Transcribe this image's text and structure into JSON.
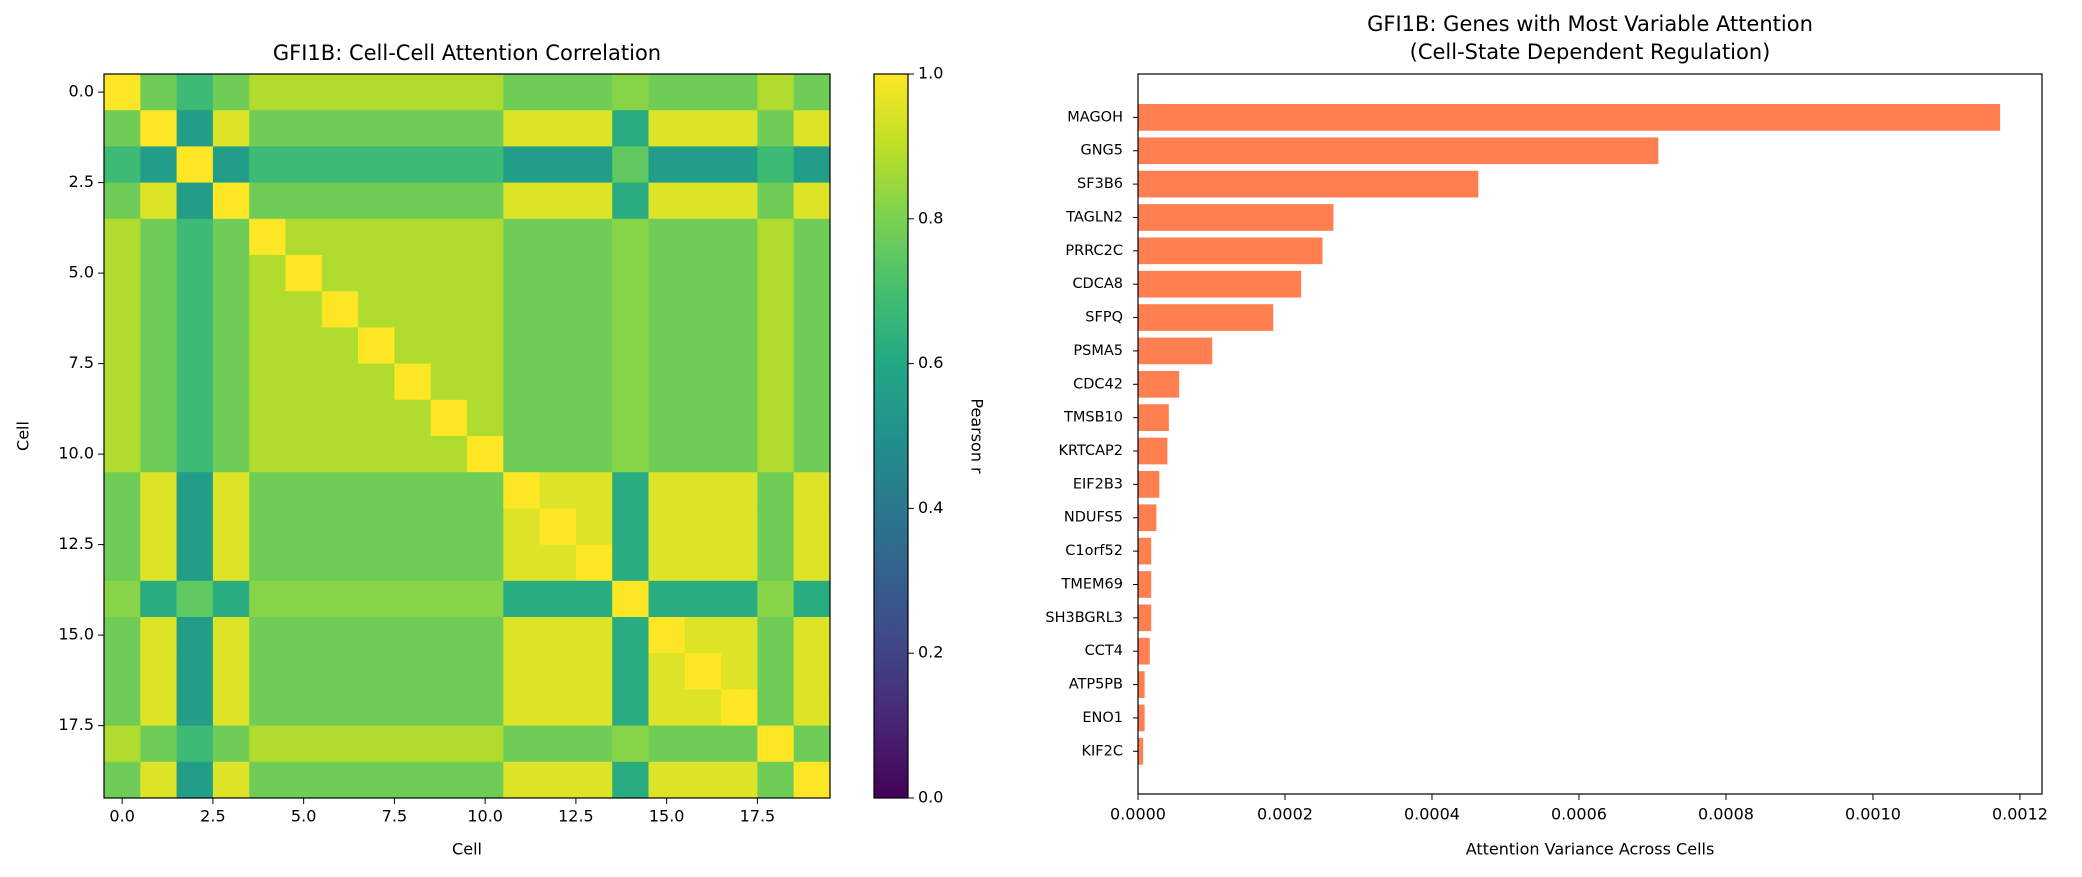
{
  "chart_data": [
    {
      "type": "heatmap",
      "title": "GFI1B: Cell-Cell Attention Correlation",
      "x_label": "Cell",
      "y_label": "Cell",
      "colormap": "viridis",
      "colorbar_label": "Pearson r",
      "clim": [
        0,
        1
      ],
      "cticks": [
        {
          "value": 0,
          "label": "0.0"
        },
        0.2,
        0.4,
        0.6,
        0.8,
        {
          "value": 1,
          "label": "1.0"
        }
      ],
      "xlim": [
        -0.5,
        19.5
      ],
      "ylim": [
        19.5,
        -0.5
      ],
      "xticks": [
        {
          "value": 0,
          "label": "0.0"
        },
        2.5,
        {
          "value": 5,
          "label": "5.0"
        },
        7.5,
        {
          "value": 10,
          "label": "10.0"
        },
        12.5,
        {
          "value": 15,
          "label": "15.0"
        },
        17.5
      ],
      "yticks": [
        {
          "value": 0,
          "label": "0.0"
        },
        2.5,
        {
          "value": 5,
          "label": "5.0"
        },
        7.5,
        {
          "value": 10,
          "label": "10.0"
        },
        12.5,
        {
          "value": 15,
          "label": "15.0"
        },
        17.5
      ],
      "matrix": [
        [
          1,
          0.78,
          0.68,
          0.78,
          0.88,
          0.88,
          0.88,
          0.88,
          0.88,
          0.88,
          0.88,
          0.78,
          0.78,
          0.78,
          0.82,
          0.78,
          0.78,
          0.78,
          0.88,
          0.78
        ],
        [
          0.78,
          1,
          0.55,
          0.95,
          0.78,
          0.78,
          0.78,
          0.78,
          0.78,
          0.78,
          0.78,
          0.95,
          0.95,
          0.95,
          0.62,
          0.95,
          0.95,
          0.95,
          0.78,
          0.95
        ],
        [
          0.68,
          0.55,
          1,
          0.55,
          0.68,
          0.68,
          0.68,
          0.68,
          0.68,
          0.68,
          0.68,
          0.55,
          0.55,
          0.55,
          0.75,
          0.55,
          0.55,
          0.55,
          0.68,
          0.55
        ],
        [
          0.78,
          0.95,
          0.55,
          1,
          0.78,
          0.78,
          0.78,
          0.78,
          0.78,
          0.78,
          0.78,
          0.95,
          0.95,
          0.95,
          0.62,
          0.95,
          0.95,
          0.95,
          0.78,
          0.95
        ],
        [
          0.88,
          0.78,
          0.68,
          0.78,
          1,
          0.88,
          0.88,
          0.88,
          0.88,
          0.88,
          0.88,
          0.78,
          0.78,
          0.78,
          0.82,
          0.78,
          0.78,
          0.78,
          0.88,
          0.78
        ],
        [
          0.88,
          0.78,
          0.68,
          0.78,
          0.88,
          1,
          0.88,
          0.88,
          0.88,
          0.88,
          0.88,
          0.78,
          0.78,
          0.78,
          0.82,
          0.78,
          0.78,
          0.78,
          0.88,
          0.78
        ],
        [
          0.88,
          0.78,
          0.68,
          0.78,
          0.88,
          0.88,
          1,
          0.88,
          0.88,
          0.88,
          0.88,
          0.78,
          0.78,
          0.78,
          0.82,
          0.78,
          0.78,
          0.78,
          0.88,
          0.78
        ],
        [
          0.88,
          0.78,
          0.68,
          0.78,
          0.88,
          0.88,
          0.88,
          1,
          0.88,
          0.88,
          0.88,
          0.78,
          0.78,
          0.78,
          0.82,
          0.78,
          0.78,
          0.78,
          0.88,
          0.78
        ],
        [
          0.88,
          0.78,
          0.68,
          0.78,
          0.88,
          0.88,
          0.88,
          0.88,
          1,
          0.88,
          0.88,
          0.78,
          0.78,
          0.78,
          0.82,
          0.78,
          0.78,
          0.78,
          0.88,
          0.78
        ],
        [
          0.88,
          0.78,
          0.68,
          0.78,
          0.88,
          0.88,
          0.88,
          0.88,
          0.88,
          1,
          0.88,
          0.78,
          0.78,
          0.78,
          0.82,
          0.78,
          0.78,
          0.78,
          0.88,
          0.78
        ],
        [
          0.88,
          0.78,
          0.68,
          0.78,
          0.88,
          0.88,
          0.88,
          0.88,
          0.88,
          0.88,
          1,
          0.78,
          0.78,
          0.78,
          0.82,
          0.78,
          0.78,
          0.78,
          0.88,
          0.78
        ],
        [
          0.78,
          0.95,
          0.55,
          0.95,
          0.78,
          0.78,
          0.78,
          0.78,
          0.78,
          0.78,
          0.78,
          1,
          0.95,
          0.95,
          0.62,
          0.95,
          0.95,
          0.95,
          0.78,
          0.95
        ],
        [
          0.78,
          0.95,
          0.55,
          0.95,
          0.78,
          0.78,
          0.78,
          0.78,
          0.78,
          0.78,
          0.78,
          0.95,
          1,
          0.95,
          0.62,
          0.95,
          0.95,
          0.95,
          0.78,
          0.95
        ],
        [
          0.78,
          0.95,
          0.55,
          0.95,
          0.78,
          0.78,
          0.78,
          0.78,
          0.78,
          0.78,
          0.78,
          0.95,
          0.95,
          1,
          0.62,
          0.95,
          0.95,
          0.95,
          0.78,
          0.95
        ],
        [
          0.82,
          0.62,
          0.75,
          0.62,
          0.82,
          0.82,
          0.82,
          0.82,
          0.82,
          0.82,
          0.82,
          0.62,
          0.62,
          0.62,
          1,
          0.62,
          0.62,
          0.62,
          0.82,
          0.62
        ],
        [
          0.78,
          0.95,
          0.55,
          0.95,
          0.78,
          0.78,
          0.78,
          0.78,
          0.78,
          0.78,
          0.78,
          0.95,
          0.95,
          0.95,
          0.62,
          1,
          0.95,
          0.95,
          0.78,
          0.95
        ],
        [
          0.78,
          0.95,
          0.55,
          0.95,
          0.78,
          0.78,
          0.78,
          0.78,
          0.78,
          0.78,
          0.78,
          0.95,
          0.95,
          0.95,
          0.62,
          0.95,
          1,
          0.95,
          0.78,
          0.95
        ],
        [
          0.78,
          0.95,
          0.55,
          0.95,
          0.78,
          0.78,
          0.78,
          0.78,
          0.78,
          0.78,
          0.78,
          0.95,
          0.95,
          0.95,
          0.62,
          0.95,
          0.95,
          1,
          0.78,
          0.95
        ],
        [
          0.88,
          0.78,
          0.68,
          0.78,
          0.88,
          0.88,
          0.88,
          0.88,
          0.88,
          0.88,
          0.88,
          0.78,
          0.78,
          0.78,
          0.82,
          0.78,
          0.78,
          0.78,
          1,
          0.78
        ],
        [
          0.78,
          0.95,
          0.55,
          0.95,
          0.78,
          0.78,
          0.78,
          0.78,
          0.78,
          0.78,
          0.78,
          0.95,
          0.95,
          0.95,
          0.62,
          0.95,
          0.95,
          0.95,
          0.78,
          1
        ]
      ]
    },
    {
      "type": "barh",
      "title_lines": [
        "GFI1B: Genes with Most Variable Attention",
        "(Cell-State Dependent Regulation)"
      ],
      "x_label": "Attention Variance Across Cells",
      "color": "#ff7f50",
      "categories": [
        "MAGOH",
        "GNG5",
        "SF3B6",
        "TAGLN2",
        "PRRC2C",
        "CDCA8",
        "SFPQ",
        "PSMA5",
        "CDC42",
        "TMSB10",
        "KRTCAP2",
        "EIF2B3",
        "NDUFS5",
        "C1orf52",
        "TMEM69",
        "SH3BGRL3",
        "CCT4",
        "ATP5PB",
        "ENO1",
        "KIF2C"
      ],
      "values": [
        0.001173,
        0.000708,
        0.000463,
        0.000266,
        0.000251,
        0.000222,
        0.000184,
        0.000101,
        5.6e-05,
        4.2e-05,
        4e-05,
        2.9e-05,
        2.5e-05,
        1.8e-05,
        1.8e-05,
        1.8e-05,
        1.6e-05,
        9e-06,
        9e-06,
        7e-06
      ],
      "xlim": [
        0,
        0.00123
      ],
      "xticks": [
        {
          "value": 0,
          "label": "0.0000"
        },
        {
          "value": 0.0002,
          "label": "0.0002"
        },
        {
          "value": 0.0004,
          "label": "0.0004"
        },
        {
          "value": 0.0006,
          "label": "0.0006"
        },
        {
          "value": 0.0008,
          "label": "0.0008"
        },
        {
          "value": 0.001,
          "label": "0.0010"
        },
        {
          "value": 0.0012,
          "label": "0.0012"
        }
      ]
    }
  ]
}
